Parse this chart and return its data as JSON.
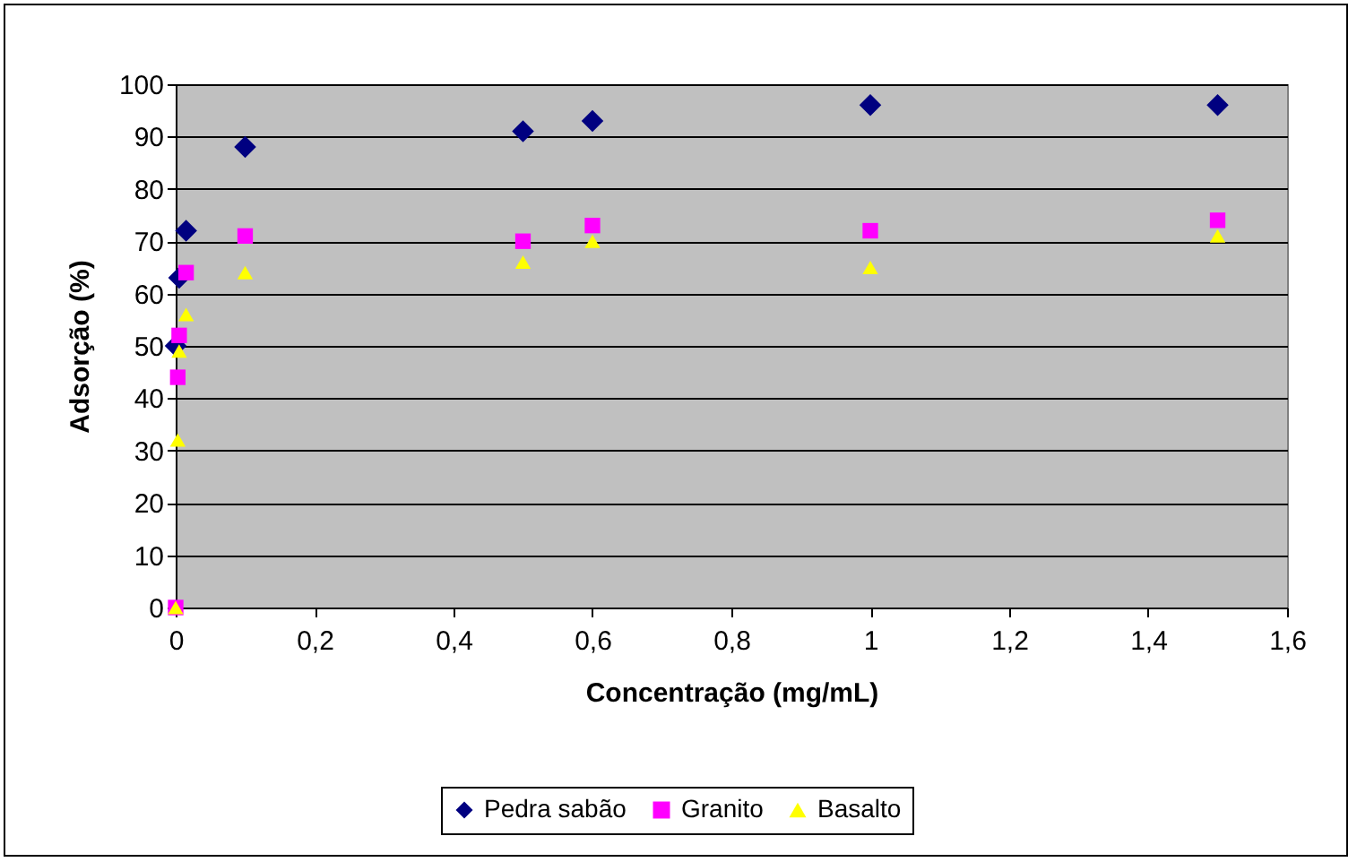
{
  "chart_data": {
    "type": "scatter",
    "xlabel": "Concentração (mg/mL)",
    "ylabel": "Adsorção (%)",
    "xlim": [
      0,
      1.6
    ],
    "xticks": [
      0,
      {
        "value": 0.2,
        "label": "0,2"
      },
      {
        "value": 0.4,
        "label": "0,4"
      },
      {
        "value": 0.6,
        "label": "0,6"
      },
      {
        "value": 0.8,
        "label": "0,8"
      },
      1,
      {
        "value": 1.2,
        "label": "1,2"
      },
      {
        "value": 1.4,
        "label": "1,4"
      },
      {
        "value": 1.6,
        "label": "1,6"
      }
    ],
    "ylim": [
      0,
      100
    ],
    "yticks": [
      0,
      10,
      20,
      30,
      40,
      50,
      60,
      70,
      80,
      90,
      100
    ],
    "grid": "y",
    "legend": "bottom",
    "series": [
      {
        "name": "Pedra sabão",
        "color": "#000080",
        "marker": "diamond",
        "x": [
          0,
          0.005,
          0.015,
          0.1,
          0.5,
          0.6,
          1,
          1.5
        ],
        "values": [
          50,
          63,
          72,
          88,
          91,
          93,
          96,
          96
        ]
      },
      {
        "name": "Granito",
        "color": "#ff00ff",
        "marker": "square",
        "x": [
          0,
          0.003,
          0.005,
          0.015,
          0.1,
          0.5,
          0.6,
          1,
          1.5
        ],
        "values": [
          0,
          44,
          52,
          64,
          71,
          70,
          73,
          72,
          74
        ]
      },
      {
        "name": "Basalto",
        "color": "#ffff00",
        "marker": "triangle",
        "x": [
          0,
          0.003,
          0.005,
          0.015,
          0.1,
          0.5,
          0.6,
          1,
          1.5
        ],
        "values": [
          0,
          32,
          49,
          56,
          64,
          66,
          70,
          65,
          71
        ]
      }
    ]
  }
}
